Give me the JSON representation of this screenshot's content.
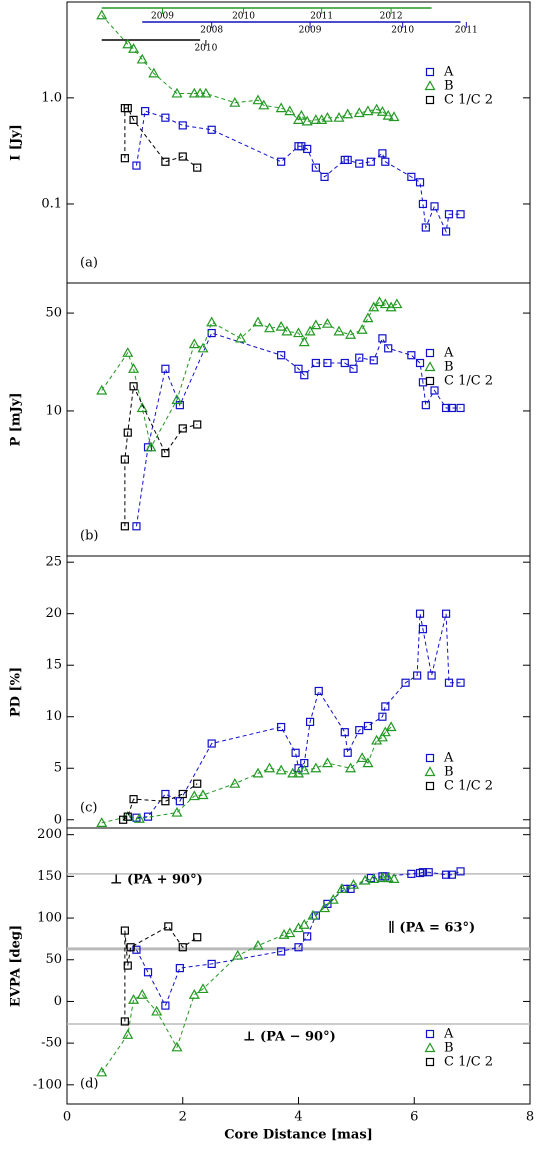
{
  "chart_data": [
    {
      "type": "scatter",
      "ylabel": "I [Jy]",
      "label": "(a)",
      "yscale": "log",
      "xlim": [
        0,
        8
      ],
      "ylim": [
        0.018,
        8
      ],
      "yticks": [
        0.1,
        {
          "value": 1,
          "label": "1.0"
        }
      ],
      "legend": "upper right",
      "timelines": [
        {
          "color": "#229922",
          "range": [
            0.6,
            6.3
          ],
          "ticks": [
            {
              "value": 1.65,
              "label": "2009"
            },
            {
              "value": 3.05,
              "label": "2010"
            },
            {
              "value": 4.4,
              "label": "2011"
            },
            {
              "value": 5.6,
              "label": "2012"
            }
          ]
        },
        {
          "color": "#1111bb",
          "range": [
            1.3,
            6.8
          ],
          "ticks": [
            {
              "value": 2.5,
              "label": "2008"
            },
            {
              "value": 4.2,
              "label": "2009"
            },
            {
              "value": 5.8,
              "label": "2010"
            },
            {
              "value": 6.9,
              "label": "2011"
            }
          ]
        },
        {
          "color": "#000000",
          "range": [
            0.6,
            2.3
          ],
          "ticks": [
            {
              "value": 2.4,
              "label": "2010"
            }
          ]
        }
      ],
      "series": [
        {
          "name": "A",
          "color": "#1111cc",
          "marker": "square",
          "x": [
            1.2,
            1.35,
            1.7,
            2.0,
            2.5,
            3.7,
            4.0,
            4.05,
            4.15,
            4.3,
            4.45,
            4.8,
            4.85,
            5.05,
            5.25,
            5.45,
            5.5,
            5.95,
            6.1,
            6.15,
            6.2,
            6.35,
            6.55,
            6.6,
            6.8
          ],
          "values": [
            0.23,
            0.75,
            0.65,
            0.55,
            0.5,
            0.25,
            0.35,
            0.35,
            0.33,
            0.22,
            0.18,
            0.26,
            0.26,
            0.24,
            0.25,
            0.3,
            0.25,
            0.18,
            0.16,
            0.1,
            0.06,
            0.095,
            0.055,
            0.08,
            0.08
          ]
        },
        {
          "name": "B",
          "color": "#229922",
          "marker": "triangle",
          "x": [
            0.6,
            1.05,
            1.15,
            1.3,
            1.5,
            1.9,
            2.2,
            2.3,
            2.4,
            2.9,
            3.3,
            3.4,
            3.7,
            3.85,
            4.0,
            4.05,
            4.15,
            4.3,
            4.4,
            4.5,
            4.7,
            4.85,
            5.05,
            5.2,
            5.35,
            5.45,
            5.55,
            5.65
          ],
          "values": [
            6.0,
            3.2,
            2.9,
            2.3,
            1.7,
            1.1,
            1.1,
            1.1,
            1.1,
            0.9,
            0.95,
            0.85,
            0.8,
            0.75,
            0.62,
            0.68,
            0.6,
            0.62,
            0.62,
            0.65,
            0.65,
            0.7,
            0.72,
            0.75,
            0.78,
            0.74,
            0.68,
            0.66
          ]
        },
        {
          "name": "C 1/C 2",
          "color": "#000000",
          "marker": "square",
          "x": [
            1.0,
            1.0,
            1.05,
            1.15,
            1.7,
            2.0,
            2.25
          ],
          "values": [
            0.27,
            0.8,
            0.8,
            0.62,
            0.25,
            0.28,
            0.22
          ]
        }
      ]
    },
    {
      "type": "scatter",
      "ylabel": "P [mJy]",
      "label": "(b)",
      "yscale": "log",
      "xlim": [
        0,
        8
      ],
      "ylim": [
        0.92,
        82
      ],
      "yticks": [
        10,
        50
      ],
      "legend": "upper right",
      "series": [
        {
          "name": "A",
          "color": "#1111cc",
          "marker": "square",
          "x": [
            1.2,
            1.4,
            1.7,
            1.95,
            2.5,
            3.7,
            4.0,
            4.1,
            4.3,
            4.5,
            4.8,
            4.95,
            5.05,
            5.3,
            5.45,
            5.55,
            5.95,
            6.1,
            6.15,
            6.2,
            6.35,
            6.55,
            6.65,
            6.8
          ],
          "values": [
            1.5,
            5.5,
            20,
            11,
            36,
            25,
            20,
            18,
            22,
            22,
            22,
            20,
            24,
            23,
            33,
            28,
            25,
            22,
            16,
            11,
            14,
            10.5,
            10.5,
            10.5
          ]
        },
        {
          "name": "B",
          "color": "#229922",
          "marker": "triangle",
          "x": [
            0.6,
            1.05,
            1.15,
            1.3,
            1.45,
            1.9,
            2.2,
            2.35,
            2.5,
            3.0,
            3.3,
            3.5,
            3.7,
            3.8,
            4.0,
            4.1,
            4.2,
            4.3,
            4.5,
            4.7,
            4.9,
            5.1,
            5.2,
            5.3,
            5.4,
            5.5,
            5.6,
            5.7
          ],
          "values": [
            14,
            26,
            20,
            10.5,
            5.5,
            12,
            30,
            28,
            43,
            33,
            43,
            39,
            40,
            37,
            36,
            31,
            37,
            41,
            42,
            37,
            35,
            38,
            46,
            55,
            60,
            58,
            55,
            58
          ]
        },
        {
          "name": "C 1/C 2",
          "color": "#000000",
          "marker": "square",
          "x": [
            1.0,
            1.0,
            1.05,
            1.15,
            1.7,
            2.0,
            2.25
          ],
          "values": [
            1.5,
            4.5,
            7,
            15,
            5.0,
            7.5,
            8.0
          ]
        }
      ]
    },
    {
      "type": "scatter",
      "ylabel": "PD [%]",
      "label": "(c)",
      "xlim": [
        0,
        8
      ],
      "ylim": [
        -0.8,
        25.6
      ],
      "yticks": [
        0,
        5,
        10,
        15,
        20,
        25
      ],
      "legend": "lower right",
      "series": [
        {
          "name": "A",
          "color": "#1111cc",
          "marker": "square",
          "x": [
            1.2,
            1.4,
            1.7,
            1.95,
            2.5,
            3.7,
            3.95,
            4.0,
            4.1,
            4.2,
            4.35,
            4.8,
            4.85,
            5.05,
            5.2,
            5.45,
            5.5,
            5.85,
            6.05,
            6.1,
            6.15,
            6.3,
            6.55,
            6.6,
            6.8
          ],
          "values": [
            0.2,
            0.3,
            2.5,
            1.8,
            7.4,
            9.0,
            6.5,
            5.0,
            5.5,
            9.5,
            12.5,
            8.5,
            6.5,
            8.7,
            9.1,
            10,
            11,
            13.3,
            14,
            20,
            18.5,
            14,
            20,
            13.3,
            13.3
          ]
        },
        {
          "name": "B",
          "color": "#229922",
          "marker": "triangle",
          "x": [
            0.6,
            1.05,
            1.25,
            1.9,
            2.2,
            2.35,
            2.9,
            3.3,
            3.5,
            3.7,
            3.9,
            4.0,
            4.1,
            4.3,
            4.5,
            4.9,
            5.1,
            5.2,
            5.35,
            5.45,
            5.5,
            5.6
          ],
          "values": [
            -0.3,
            0.3,
            0.1,
            0.7,
            2.3,
            2.4,
            3.5,
            4.5,
            5.0,
            4.8,
            4.5,
            4.5,
            4.8,
            5.0,
            5.5,
            5.0,
            6.0,
            5.5,
            7.7,
            8.0,
            8.5,
            9.0
          ]
        },
        {
          "name": "C 1/C 2",
          "color": "#000000",
          "marker": "square",
          "x": [
            0.97,
            1.05,
            1.15,
            1.7,
            2.0,
            2.25
          ],
          "values": [
            0,
            0.3,
            2.0,
            1.8,
            2.5,
            3.5
          ]
        }
      ]
    },
    {
      "type": "scatter",
      "ylabel": "EVPA [deg]",
      "label": "(d)",
      "xlabel": "Core Distance [mas]",
      "xlim": [
        0,
        8
      ],
      "ylim": [
        -123,
        208
      ],
      "xticks": [
        0,
        2,
        4,
        6,
        8
      ],
      "yticks": [
        -100,
        -50,
        0,
        50,
        100,
        150,
        200
      ],
      "legend": "lower right",
      "hlines": [
        153,
        63,
        -27
      ],
      "annotations": [
        "⊥ (PA + 90°)",
        "∥  (PA = 63°)",
        "⊥ (PA − 90°)"
      ],
      "series": [
        {
          "name": "A",
          "color": "#1111cc",
          "marker": "square",
          "x": [
            1.2,
            1.4,
            1.7,
            1.95,
            2.5,
            3.7,
            4.0,
            4.15,
            4.3,
            4.5,
            4.8,
            4.9,
            5.25,
            5.45,
            5.5,
            5.95,
            6.1,
            6.15,
            6.25,
            6.55,
            6.65,
            6.8
          ],
          "values": [
            62,
            35,
            -5,
            40,
            45,
            60,
            65,
            78,
            103,
            117,
            135,
            135,
            148,
            150,
            150,
            153,
            154,
            155,
            155,
            152,
            152,
            156
          ]
        },
        {
          "name": "B",
          "color": "#229922",
          "marker": "triangle",
          "x": [
            0.6,
            1.05,
            1.15,
            1.3,
            1.55,
            1.9,
            2.2,
            2.35,
            2.95,
            3.3,
            3.75,
            3.85,
            4.0,
            4.1,
            4.25,
            4.45,
            4.6,
            4.75,
            4.95,
            5.15,
            5.3,
            5.45,
            5.55,
            5.65
          ],
          "values": [
            -85,
            -40,
            2,
            8,
            -12,
            -55,
            8,
            15,
            55,
            67,
            80,
            82,
            88,
            92,
            103,
            112,
            122,
            135,
            140,
            145,
            147,
            148,
            148,
            147
          ]
        },
        {
          "name": "C 1/C 2",
          "color": "#000000",
          "marker": "square",
          "x": [
            1.0,
            1.0,
            1.05,
            1.1,
            1.75,
            2.0,
            2.25
          ],
          "values": [
            -24,
            85,
            43,
            65,
            90,
            65,
            77
          ]
        }
      ]
    }
  ]
}
